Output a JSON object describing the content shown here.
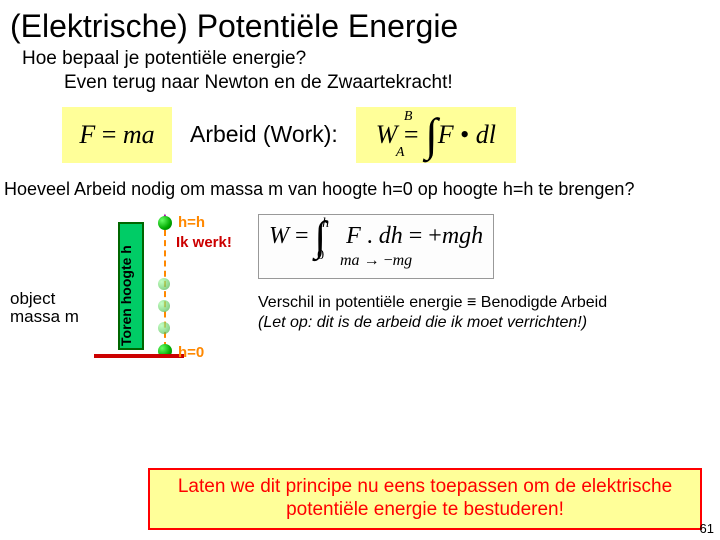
{
  "title": "(Elektrische) Potentiële Energie",
  "intro": {
    "line1": "Hoe bepaal je potentiële energie?",
    "line2": "Even terug naar Newton en de Zwaartekracht!"
  },
  "work": {
    "newton_formula": "F = ma",
    "label": "Arbeid (Work):",
    "work_formula": "W = ∫ F · dl",
    "work_limit_top": "B",
    "work_limit_bottom": "A"
  },
  "question1": "Hoeveel Arbeid nodig om massa m van hoogte h=0 op hoogte h=h te brengen?",
  "diagram": {
    "object_label": "object massa m",
    "tower_label": "Toren hoogte h",
    "h_top": "h=h",
    "h_bottom": "h=0",
    "ik_werk": "Ik werk!",
    "colors": {
      "tower_fill": "#00cc66",
      "tower_border": "#006600",
      "ground": "#cc0000",
      "path_dash": "#ff8800",
      "arrow": "#aa00aa",
      "label_orange": "#ff8800",
      "ikwerk_red": "#cc0000"
    }
  },
  "big_formula": {
    "main": "W = ∫ F . dh = +mgh",
    "limit_top": "h",
    "limit_bottom": "0",
    "sub_line": "ma → −mg"
  },
  "principle": {
    "line1": "Verschil in potentiële energie ≡ Benodigde  Arbeid",
    "line2": "(Let op: dit is de arbeid die ik moet verrichten!)"
  },
  "final": "Laten we dit principe nu eens toepassen om de elektrische potentiële energie te bestuderen!",
  "page_number": "61",
  "style": {
    "slide_bg": "#ffffff",
    "highlight_bg": "#ffff99",
    "final_border": "#ff0000",
    "final_text": "#ff0000",
    "title_fontsize": 32,
    "body_fontsize": 18
  }
}
